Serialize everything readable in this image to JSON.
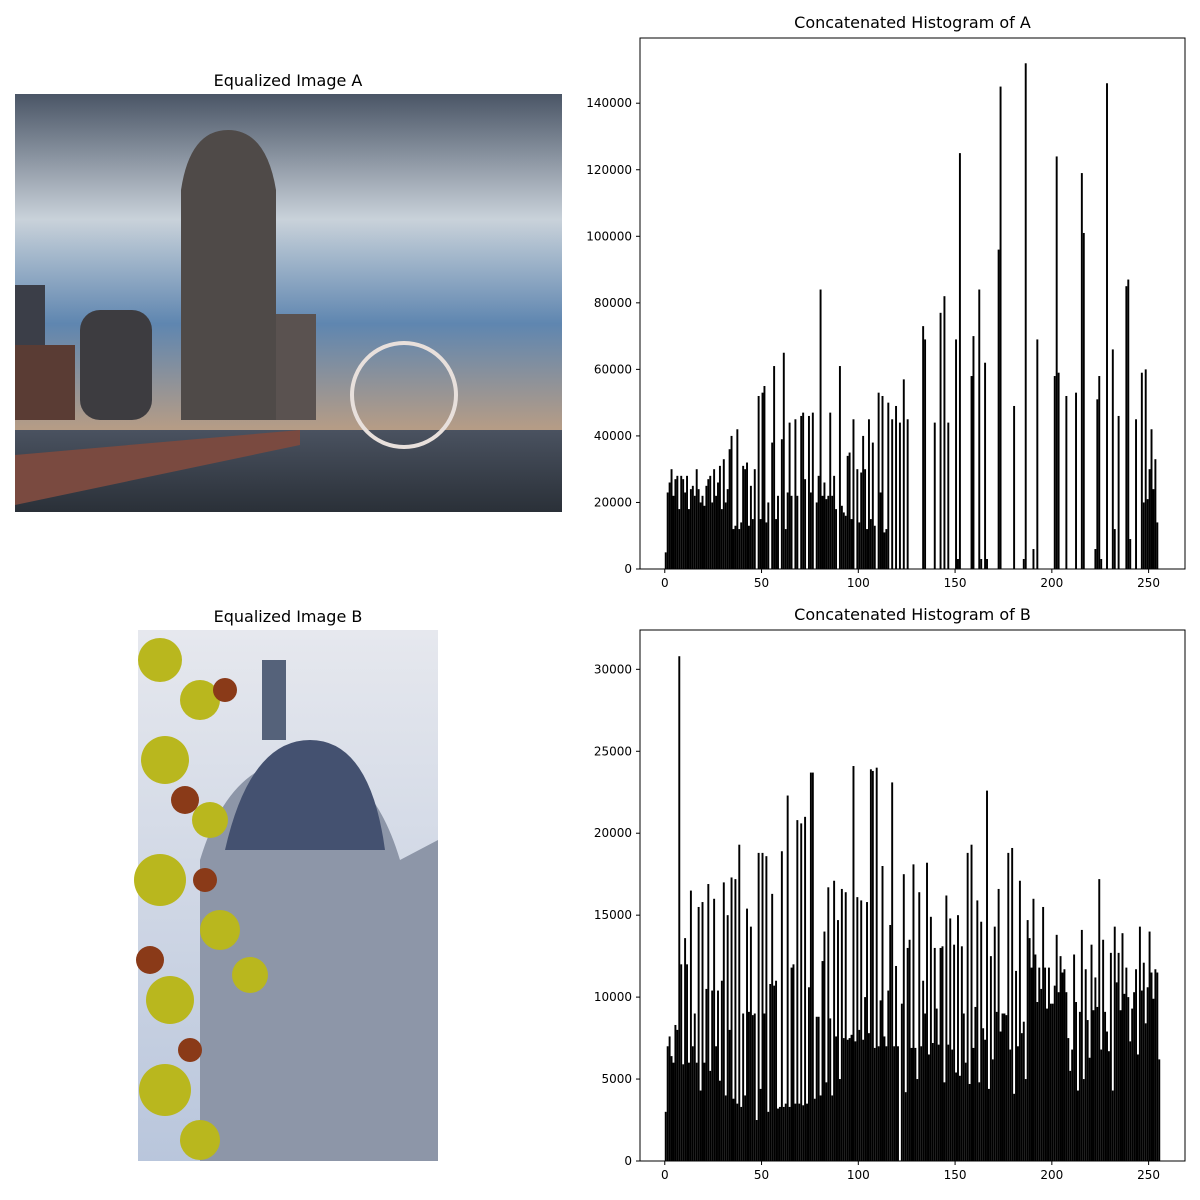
{
  "images": [
    {
      "title": "Equalized Image A"
    },
    {
      "title": "Equalized Image B"
    }
  ],
  "chart_data": [
    {
      "type": "histogram",
      "title": "Concatenated Histogram of A",
      "color": "#000000",
      "bins": [
        0,
        1,
        2,
        3,
        4,
        5,
        6,
        7,
        8,
        9,
        10,
        11,
        12,
        13,
        14,
        15,
        16,
        17,
        18,
        19,
        20,
        21,
        22,
        23,
        24,
        25,
        26,
        27,
        28,
        29,
        30,
        31,
        32,
        33,
        34,
        35,
        36,
        37,
        38,
        39,
        40,
        41,
        42,
        43,
        44,
        45,
        46,
        47,
        48,
        49,
        50,
        51,
        52,
        53,
        54,
        55,
        56,
        57,
        58,
        59,
        60,
        61,
        62,
        63,
        64,
        65,
        66,
        67,
        68,
        69,
        70,
        71,
        72,
        73,
        74,
        75,
        76,
        77,
        78,
        79,
        80,
        81,
        82,
        83,
        84,
        85,
        86,
        87,
        88,
        89,
        90,
        91,
        92,
        93,
        94,
        95,
        96,
        97,
        98,
        99,
        100,
        101,
        102,
        103,
        104,
        105,
        106,
        107,
        108,
        109,
        110,
        111,
        112,
        113,
        114,
        115,
        116,
        117,
        118,
        119,
        120,
        121,
        122,
        123,
        124,
        125,
        126,
        127,
        128,
        129,
        130,
        131,
        132,
        133,
        134,
        135,
        136,
        137,
        138,
        139,
        140,
        141,
        142,
        143,
        144,
        145,
        146,
        147,
        148,
        149,
        150,
        151,
        152,
        153,
        154,
        155,
        156,
        157,
        158,
        159,
        160,
        161,
        162,
        163,
        164,
        165,
        166,
        167,
        168,
        169,
        170,
        171,
        172,
        173,
        174,
        175,
        176,
        177,
        178,
        179,
        180,
        181,
        182,
        183,
        184,
        185,
        186,
        187,
        188,
        189,
        190,
        191,
        192,
        193,
        194,
        195,
        196,
        197,
        198,
        199,
        200,
        201,
        202,
        203,
        204,
        205,
        206,
        207,
        208,
        209,
        210,
        211,
        212,
        213,
        214,
        215,
        216,
        217,
        218,
        219,
        220,
        221,
        222,
        223,
        224,
        225,
        226,
        227,
        228,
        229,
        230,
        231,
        232,
        233,
        234,
        235,
        236,
        237,
        238,
        239,
        240,
        241,
        242,
        243,
        244,
        245,
        246,
        247,
        248,
        249,
        250,
        251,
        252,
        253,
        254,
        255,
        256
      ],
      "counts": [
        5000,
        23000,
        26000,
        30000,
        22000,
        27000,
        28000,
        18000,
        28000,
        27000,
        23000,
        28000,
        18000,
        24000,
        25000,
        22000,
        30000,
        24000,
        20000,
        22000,
        19000,
        25000,
        27000,
        28000,
        20000,
        30000,
        22000,
        26000,
        31000,
        18000,
        33000,
        20000,
        24000,
        36000,
        40000,
        12000,
        13000,
        42000,
        12000,
        14000,
        31000,
        30000,
        32000,
        13000,
        25000,
        15000,
        30000,
        0,
        52000,
        15000,
        53000,
        55000,
        14000,
        20000,
        0,
        38000,
        61000,
        15000,
        22000,
        0,
        39000,
        65000,
        12000,
        23000,
        44000,
        22000,
        0,
        45000,
        22000,
        0,
        46000,
        47000,
        27000,
        0,
        46000,
        23000,
        47000,
        0,
        20000,
        28000,
        84000,
        22000,
        26000,
        21000,
        22000,
        47000,
        22000,
        28000,
        18000,
        0,
        61000,
        19000,
        17000,
        16000,
        34000,
        35000,
        15000,
        45000,
        0,
        30000,
        14000,
        29000,
        40000,
        30000,
        12000,
        45000,
        15000,
        38000,
        13000,
        0,
        53000,
        23000,
        52000,
        11000,
        12000,
        50000,
        0,
        45000,
        0,
        49000,
        0,
        44000,
        0,
        57000,
        0,
        45000,
        0,
        0,
        0,
        0,
        0,
        0,
        0,
        73000,
        69000,
        0,
        0,
        0,
        0,
        44000,
        0,
        0,
        77000,
        0,
        82000,
        0,
        44000,
        0,
        0,
        0,
        69000,
        3000,
        125000,
        0,
        0,
        0,
        0,
        0,
        58000,
        70000,
        0,
        0,
        84000,
        3000,
        0,
        62000,
        3000,
        0,
        0,
        0,
        0,
        0,
        96000,
        145000,
        0,
        0,
        0,
        0,
        0,
        0,
        49000,
        0,
        0,
        0,
        0,
        3000,
        152000,
        0,
        0,
        0,
        6000,
        0,
        69000,
        0,
        0,
        0,
        0,
        0,
        0,
        0,
        0,
        58000,
        124000,
        59000,
        0,
        0,
        0,
        52000,
        0,
        0,
        0,
        0,
        53000,
        0,
        0,
        119000,
        101000,
        0,
        0,
        0,
        0,
        0,
        6000,
        51000,
        58000,
        3000,
        0,
        0,
        146000,
        0,
        0,
        66000,
        12000,
        0,
        46000,
        0,
        0,
        0,
        85000,
        87000,
        9000,
        0,
        0,
        45000,
        0,
        0,
        59000,
        20000,
        60000,
        21000,
        30000,
        42000,
        24000,
        33000,
        14000,
        0
      ],
      "xlim": [
        -12.8,
        268.8
      ],
      "xticks": [
        0,
        50,
        100,
        150,
        200,
        250
      ],
      "ylim": [
        0,
        159600
      ],
      "yticks": [
        0,
        20000,
        40000,
        60000,
        80000,
        100000,
        120000,
        140000
      ]
    },
    {
      "type": "histogram",
      "title": "Concatenated Histogram of B",
      "color": "#000000",
      "bins": [
        0,
        1,
        2,
        3,
        4,
        5,
        6,
        7,
        8,
        9,
        10,
        11,
        12,
        13,
        14,
        15,
        16,
        17,
        18,
        19,
        20,
        21,
        22,
        23,
        24,
        25,
        26,
        27,
        28,
        29,
        30,
        31,
        32,
        33,
        34,
        35,
        36,
        37,
        38,
        39,
        40,
        41,
        42,
        43,
        44,
        45,
        46,
        47,
        48,
        49,
        50,
        51,
        52,
        53,
        54,
        55,
        56,
        57,
        58,
        59,
        60,
        61,
        62,
        63,
        64,
        65,
        66,
        67,
        68,
        69,
        70,
        71,
        72,
        73,
        74,
        75,
        76,
        77,
        78,
        79,
        80,
        81,
        82,
        83,
        84,
        85,
        86,
        87,
        88,
        89,
        90,
        91,
        92,
        93,
        94,
        95,
        96,
        97,
        98,
        99,
        100,
        101,
        102,
        103,
        104,
        105,
        106,
        107,
        108,
        109,
        110,
        111,
        112,
        113,
        114,
        115,
        116,
        117,
        118,
        119,
        120,
        121,
        122,
        123,
        124,
        125,
        126,
        127,
        128,
        129,
        130,
        131,
        132,
        133,
        134,
        135,
        136,
        137,
        138,
        139,
        140,
        141,
        142,
        143,
        144,
        145,
        146,
        147,
        148,
        149,
        150,
        151,
        152,
        153,
        154,
        155,
        156,
        157,
        158,
        159,
        160,
        161,
        162,
        163,
        164,
        165,
        166,
        167,
        168,
        169,
        170,
        171,
        172,
        173,
        174,
        175,
        176,
        177,
        178,
        179,
        180,
        181,
        182,
        183,
        184,
        185,
        186,
        187,
        188,
        189,
        190,
        191,
        192,
        193,
        194,
        195,
        196,
        197,
        198,
        199,
        200,
        201,
        202,
        203,
        204,
        205,
        206,
        207,
        208,
        209,
        210,
        211,
        212,
        213,
        214,
        215,
        216,
        217,
        218,
        219,
        220,
        221,
        222,
        223,
        224,
        225,
        226,
        227,
        228,
        229,
        230,
        231,
        232,
        233,
        234,
        235,
        236,
        237,
        238,
        239,
        240,
        241,
        242,
        243,
        244,
        245,
        246,
        247,
        248,
        249,
        250,
        251,
        252,
        253,
        254,
        255,
        256
      ],
      "counts": [
        3000,
        7000,
        7600,
        6400,
        6000,
        8300,
        8000,
        30800,
        12000,
        5900,
        13600,
        12000,
        6000,
        16500,
        7000,
        9000,
        6000,
        15500,
        4300,
        15800,
        6000,
        10500,
        16900,
        5500,
        10400,
        16000,
        7000,
        10400,
        4900,
        11000,
        17000,
        4000,
        15000,
        8000,
        17300,
        3800,
        17200,
        3500,
        19300,
        3300,
        9000,
        4000,
        15400,
        9100,
        14300,
        8900,
        9000,
        2500,
        18800,
        4400,
        18800,
        9000,
        18600,
        3000,
        10800,
        16300,
        10700,
        11000,
        3200,
        3300,
        18900,
        3300,
        3500,
        22300,
        3300,
        11800,
        12000,
        3500,
        20800,
        3500,
        20600,
        3400,
        21000,
        3500,
        10600,
        23700,
        23700,
        3800,
        8800,
        8800,
        4000,
        12200,
        14000,
        4800,
        16700,
        8700,
        4000,
        17100,
        7600,
        14700,
        5000,
        16600,
        7500,
        16400,
        7400,
        7500,
        7700,
        24100,
        7300,
        16100,
        8000,
        15900,
        7400,
        10000,
        15800,
        7800,
        23900,
        23800,
        6900,
        24000,
        7000,
        9800,
        18000,
        7600,
        7000,
        10400,
        14400,
        23100,
        7000,
        11900,
        7000,
        0,
        9600,
        17500,
        4200,
        13000,
        13500,
        6900,
        18100,
        6900,
        5000,
        16400,
        7000,
        11000,
        9000,
        18200,
        6500,
        14900,
        7200,
        13000,
        9300,
        7100,
        13000,
        13100,
        4800,
        16200,
        7100,
        14800,
        6800,
        13200,
        5400,
        15000,
        5200,
        13100,
        9000,
        6000,
        18800,
        4700,
        19300,
        6900,
        9400,
        15900,
        4800,
        14600,
        8100,
        7400,
        22600,
        4400,
        12500,
        6200,
        14300,
        9100,
        16600,
        7900,
        9000,
        9000,
        8900,
        18800,
        6800,
        19100,
        4100,
        11600,
        7000,
        17100,
        7800,
        8500,
        5000,
        14700,
        13600,
        11800,
        16000,
        12600,
        9700,
        11800,
        10500,
        15500,
        11800,
        9300,
        11800,
        9600,
        9600,
        10700,
        13800,
        10300,
        12500,
        11500,
        11700,
        10300,
        7500,
        5500,
        6800,
        12600,
        9700,
        4300,
        9100,
        14100,
        5000,
        11700,
        8600,
        6300,
        13200,
        9200,
        11200,
        9400,
        17200,
        6800,
        13500,
        9100,
        7900,
        6700,
        12700,
        4300,
        14300,
        10900,
        12700,
        9200,
        13900,
        10200,
        11800,
        10000,
        7300,
        9300,
        10300,
        11700,
        6500,
        14300,
        10400,
        12100,
        8400,
        10600,
        14000,
        11500,
        9900,
        11700,
        11500,
        6200
      ],
      "xlim": [
        -12.8,
        268.8
      ],
      "xticks": [
        0,
        50,
        100,
        150,
        200,
        250
      ],
      "ylim": [
        0,
        32400
      ],
      "yticks": [
        0,
        5000,
        10000,
        15000,
        20000,
        25000,
        30000
      ]
    }
  ]
}
